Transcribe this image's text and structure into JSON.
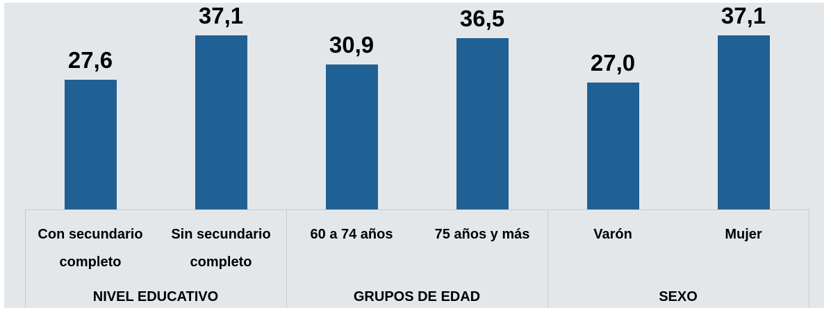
{
  "chart_data": {
    "type": "bar",
    "categories": [
      "Con secundario completo",
      "Sin secundario completo",
      "60 a 74 años",
      "75 años y más",
      "Varón",
      "Mujer"
    ],
    "groups": [
      "NIVEL EDUCATIVO",
      "GRUPOS DE EDAD",
      "SEXO"
    ],
    "values": [
      27.6,
      37.1,
      30.9,
      36.5,
      27.0,
      37.1
    ],
    "value_labels": [
      "27,6",
      "37,1",
      "30,9",
      "36,5",
      "27,0",
      "37,1"
    ],
    "color": "#1f6095",
    "ylim": [
      0,
      40
    ],
    "grid": false
  }
}
